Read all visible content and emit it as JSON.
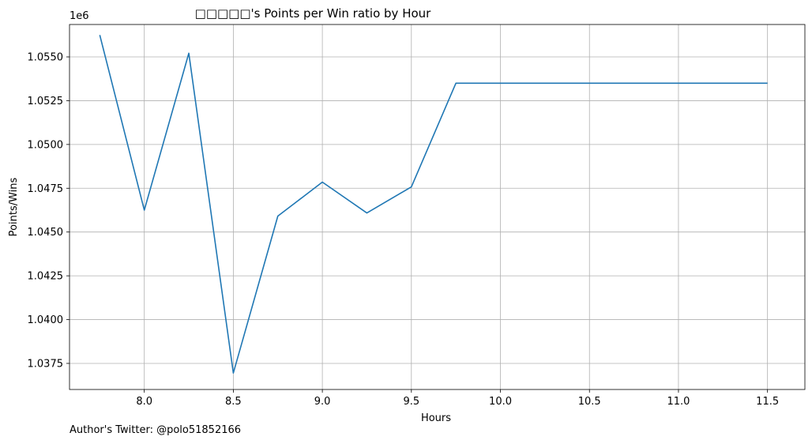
{
  "chart_data": {
    "type": "line",
    "title": "□□□□□'s Points per Win ratio by Hour",
    "xlabel": "Hours",
    "ylabel": "Points/Wins",
    "y_offset_label": "1e6",
    "xlim": [
      7.58,
      11.71
    ],
    "ylim": [
      1.03601,
      1.05685
    ],
    "x_ticks": [
      8.0,
      8.5,
      9.0,
      9.5,
      10.0,
      10.5,
      11.0,
      11.5
    ],
    "x_tick_labels": [
      "8.0",
      "8.5",
      "9.0",
      "9.5",
      "10.0",
      "10.5",
      "11.0",
      "11.5"
    ],
    "y_ticks": [
      1.0375,
      1.04,
      1.0425,
      1.045,
      1.0475,
      1.05,
      1.0525,
      1.055
    ],
    "y_tick_labels": [
      "1.0375",
      "1.0400",
      "1.0425",
      "1.0450",
      "1.0475",
      "1.0500",
      "1.0525",
      "1.0550"
    ],
    "grid": true,
    "series": [
      {
        "color": "#1f77b4",
        "x": [
          7.75,
          8.0,
          8.25,
          8.5,
          8.75,
          9.0,
          9.25,
          9.5,
          9.75,
          10.0,
          10.25,
          10.5,
          10.75,
          11.0,
          11.25,
          11.5
        ],
        "values": [
          1.05625,
          1.04625,
          1.05521,
          1.03695,
          1.04591,
          1.04785,
          1.04609,
          1.04758,
          1.0535,
          1.0535,
          1.0535,
          1.0535,
          1.0535,
          1.0535,
          1.0535,
          1.0535
        ]
      }
    ]
  },
  "footer_text": "Author's Twitter: @polo51852166"
}
